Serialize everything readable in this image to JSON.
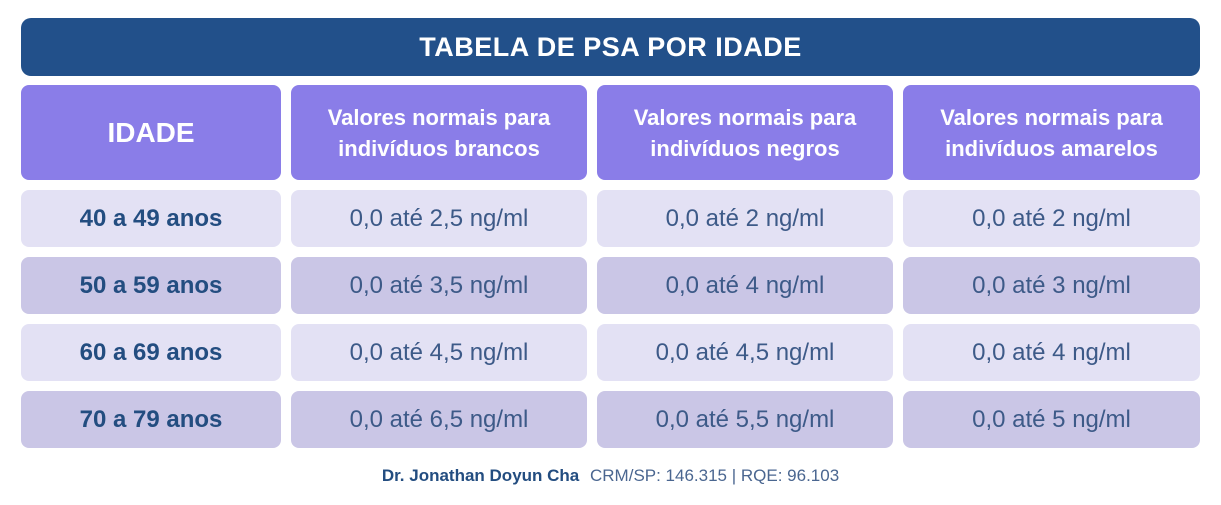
{
  "title": "TABELA DE PSA POR IDADE",
  "headers": {
    "age": "IDADE",
    "white": "Valores normais para indivíduos brancos",
    "black": "Valores normais para indivíduos negros",
    "yellow": "Valores normais para indivíduos amarelos"
  },
  "rows": [
    {
      "age": "40 a 49 anos",
      "white": "0,0 até 2,5 ng/ml",
      "black": "0,0 até 2 ng/ml",
      "yellow": "0,0 até 2 ng/ml"
    },
    {
      "age": "50 a 59 anos",
      "white": "0,0 até 3,5 ng/ml",
      "black": "0,0 até 4 ng/ml",
      "yellow": "0,0 até 3 ng/ml"
    },
    {
      "age": "60 a 69 anos",
      "white": "0,0 até 4,5 ng/ml",
      "black": "0,0 até 4,5 ng/ml",
      "yellow": "0,0 até 4 ng/ml"
    },
    {
      "age": "70 a 79 anos",
      "white": "0,0 até 6,5 ng/ml",
      "black": "0,0 até 5,5 ng/ml",
      "yellow": "0,0 até 5 ng/ml"
    }
  ],
  "footer": {
    "doctor": "Dr. Jonathan Doyun Cha",
    "credentials": "CRM/SP: 146.315 | RQE: 96.103"
  },
  "colors": {
    "title_bg": "#22508a",
    "header_bg": "#8a7de8",
    "row_light": "#e3e1f4",
    "row_dark": "#cac6e6",
    "text_blue": "#234d80"
  }
}
